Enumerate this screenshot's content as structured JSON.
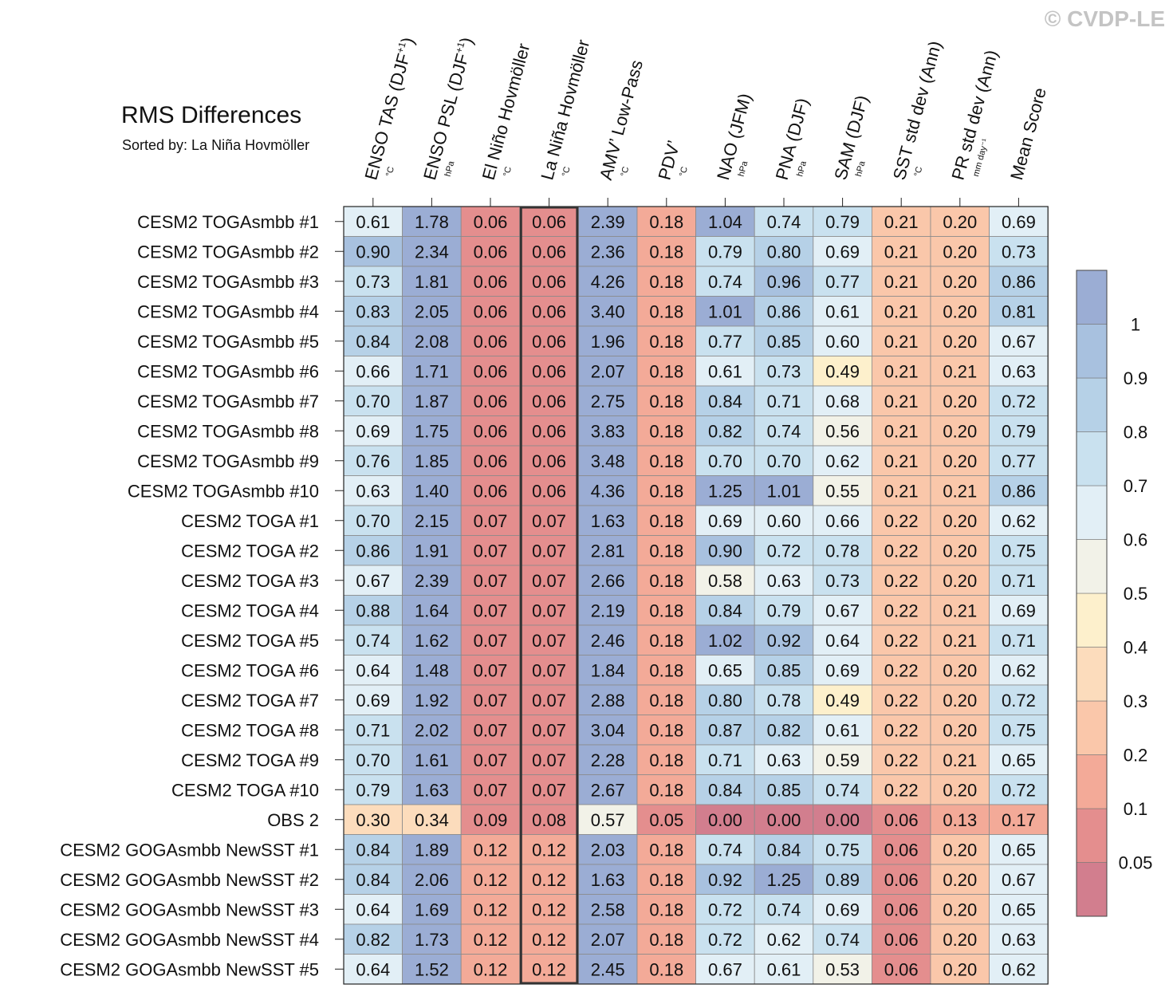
{
  "watermark": "© CVDP-LE",
  "chart_data": {
    "type": "heatmap",
    "title": "RMS Differences",
    "subtitle": "Sorted by: La Niña Hovmöller",
    "columns": [
      {
        "label": "ENSO TAS (DJF",
        "sup": "+1",
        "close": ")",
        "unit": "°C"
      },
      {
        "label": "ENSO PSL (DJF",
        "sup": "+1",
        "close": ")",
        "unit": "hPa"
      },
      {
        "label": "El Niño Hovmöller",
        "sup": "",
        "close": "",
        "unit": "°C"
      },
      {
        "label": "La Niña Hovmöller",
        "sup": "",
        "close": "",
        "unit": "°C"
      },
      {
        "label": "AMV’ Low-Pass",
        "sup": "",
        "close": "",
        "unit": "°C"
      },
      {
        "label": "PDV’",
        "sup": "",
        "close": "",
        "unit": "°C"
      },
      {
        "label": "NAO (JFM)",
        "sup": "",
        "close": "",
        "unit": "hPa"
      },
      {
        "label": "PNA (DJF)",
        "sup": "",
        "close": "",
        "unit": "hPa"
      },
      {
        "label": "SAM (DJF)",
        "sup": "",
        "close": "",
        "unit": "hPa"
      },
      {
        "label": "SST std dev (Ann)",
        "sup": "",
        "close": "",
        "unit": "°C"
      },
      {
        "label": "PR std dev (Ann)",
        "sup": "",
        "close": "",
        "unit": "mm day⁻¹"
      },
      {
        "label": "Mean Score",
        "sup": "",
        "close": "",
        "unit": ""
      }
    ],
    "highlight_column": 3,
    "rows": [
      "CESM2 TOGAsmbb #1",
      "CESM2 TOGAsmbb #2",
      "CESM2 TOGAsmbb #3",
      "CESM2 TOGAsmbb #4",
      "CESM2 TOGAsmbb #5",
      "CESM2 TOGAsmbb #6",
      "CESM2 TOGAsmbb #7",
      "CESM2 TOGAsmbb #8",
      "CESM2 TOGAsmbb #9",
      "CESM2 TOGAsmbb #10",
      "CESM2 TOGA #1",
      "CESM2 TOGA #2",
      "CESM2 TOGA #3",
      "CESM2 TOGA #4",
      "CESM2 TOGA #5",
      "CESM2 TOGA #6",
      "CESM2 TOGA #7",
      "CESM2 TOGA #8",
      "CESM2 TOGA #9",
      "CESM2 TOGA #10",
      "OBS 2",
      "CESM2 GOGAsmbb NewSST #1",
      "CESM2 GOGAsmbb NewSST #2",
      "CESM2 GOGAsmbb NewSST #3",
      "CESM2 GOGAsmbb NewSST #4",
      "CESM2 GOGAsmbb NewSST #5"
    ],
    "values": [
      [
        0.61,
        1.78,
        0.06,
        0.06,
        2.39,
        0.18,
        1.04,
        0.74,
        0.79,
        0.21,
        0.2,
        0.69
      ],
      [
        0.9,
        2.34,
        0.06,
        0.06,
        2.36,
        0.18,
        0.79,
        0.8,
        0.69,
        0.21,
        0.2,
        0.73
      ],
      [
        0.73,
        1.81,
        0.06,
        0.06,
        4.26,
        0.18,
        0.74,
        0.96,
        0.77,
        0.21,
        0.2,
        0.86
      ],
      [
        0.83,
        2.05,
        0.06,
        0.06,
        3.4,
        0.18,
        1.01,
        0.86,
        0.61,
        0.21,
        0.2,
        0.81
      ],
      [
        0.84,
        2.08,
        0.06,
        0.06,
        1.96,
        0.18,
        0.77,
        0.85,
        0.6,
        0.21,
        0.2,
        0.67
      ],
      [
        0.66,
        1.71,
        0.06,
        0.06,
        2.07,
        0.18,
        0.61,
        0.73,
        0.49,
        0.21,
        0.21,
        0.63
      ],
      [
        0.7,
        1.87,
        0.06,
        0.06,
        2.75,
        0.18,
        0.84,
        0.71,
        0.68,
        0.21,
        0.2,
        0.72
      ],
      [
        0.69,
        1.75,
        0.06,
        0.06,
        3.83,
        0.18,
        0.82,
        0.74,
        0.56,
        0.21,
        0.2,
        0.79
      ],
      [
        0.76,
        1.85,
        0.06,
        0.06,
        3.48,
        0.18,
        0.7,
        0.7,
        0.62,
        0.21,
        0.2,
        0.77
      ],
      [
        0.63,
        1.4,
        0.06,
        0.06,
        4.36,
        0.18,
        1.25,
        1.01,
        0.55,
        0.21,
        0.21,
        0.86
      ],
      [
        0.7,
        2.15,
        0.07,
        0.07,
        1.63,
        0.18,
        0.69,
        0.6,
        0.66,
        0.22,
        0.2,
        0.62
      ],
      [
        0.86,
        1.91,
        0.07,
        0.07,
        2.81,
        0.18,
        0.9,
        0.72,
        0.78,
        0.22,
        0.2,
        0.75
      ],
      [
        0.67,
        2.39,
        0.07,
        0.07,
        2.66,
        0.18,
        0.58,
        0.63,
        0.73,
        0.22,
        0.2,
        0.71
      ],
      [
        0.88,
        1.64,
        0.07,
        0.07,
        2.19,
        0.18,
        0.84,
        0.79,
        0.67,
        0.22,
        0.21,
        0.69
      ],
      [
        0.74,
        1.62,
        0.07,
        0.07,
        2.46,
        0.18,
        1.02,
        0.92,
        0.64,
        0.22,
        0.21,
        0.71
      ],
      [
        0.64,
        1.48,
        0.07,
        0.07,
        1.84,
        0.18,
        0.65,
        0.85,
        0.69,
        0.22,
        0.2,
        0.62
      ],
      [
        0.69,
        1.92,
        0.07,
        0.07,
        2.88,
        0.18,
        0.8,
        0.78,
        0.49,
        0.22,
        0.2,
        0.72
      ],
      [
        0.71,
        2.02,
        0.07,
        0.07,
        3.04,
        0.18,
        0.87,
        0.82,
        0.61,
        0.22,
        0.2,
        0.75
      ],
      [
        0.7,
        1.61,
        0.07,
        0.07,
        2.28,
        0.18,
        0.71,
        0.63,
        0.59,
        0.22,
        0.21,
        0.65
      ],
      [
        0.79,
        1.63,
        0.07,
        0.07,
        2.67,
        0.18,
        0.84,
        0.85,
        0.74,
        0.22,
        0.2,
        0.72
      ],
      [
        0.3,
        0.34,
        0.09,
        0.08,
        0.57,
        0.05,
        0.0,
        0.0,
        0.0,
        0.06,
        0.13,
        0.17
      ],
      [
        0.84,
        1.89,
        0.12,
        0.12,
        2.03,
        0.18,
        0.74,
        0.84,
        0.75,
        0.06,
        0.2,
        0.65
      ],
      [
        0.84,
        2.06,
        0.12,
        0.12,
        1.63,
        0.18,
        0.92,
        1.25,
        0.89,
        0.06,
        0.2,
        0.67
      ],
      [
        0.64,
        1.69,
        0.12,
        0.12,
        2.58,
        0.18,
        0.72,
        0.74,
        0.69,
        0.06,
        0.2,
        0.65
      ],
      [
        0.82,
        1.73,
        0.12,
        0.12,
        2.07,
        0.18,
        0.72,
        0.62,
        0.74,
        0.06,
        0.2,
        0.63
      ],
      [
        0.64,
        1.52,
        0.12,
        0.12,
        2.45,
        0.18,
        0.67,
        0.61,
        0.53,
        0.06,
        0.2,
        0.62
      ]
    ],
    "colorbar": {
      "boundaries": [
        0.05,
        0.1,
        0.2,
        0.3,
        0.4,
        0.5,
        0.6,
        0.7,
        0.8,
        0.9,
        1
      ],
      "labels": [
        "0.05",
        "0.1",
        "0.2",
        "0.3",
        "0.4",
        "0.5",
        "0.6",
        "0.7",
        "0.8",
        "0.9",
        "1"
      ],
      "colors": [
        "#d27e8e",
        "#e48e8e",
        "#f3aa98",
        "#fac7aa",
        "#fcdcbc",
        "#fdf0cc",
        "#f2f2e8",
        "#e2eff6",
        "#c9e1ef",
        "#b6d1e7",
        "#a8c1df",
        "#9badd4"
      ]
    }
  }
}
